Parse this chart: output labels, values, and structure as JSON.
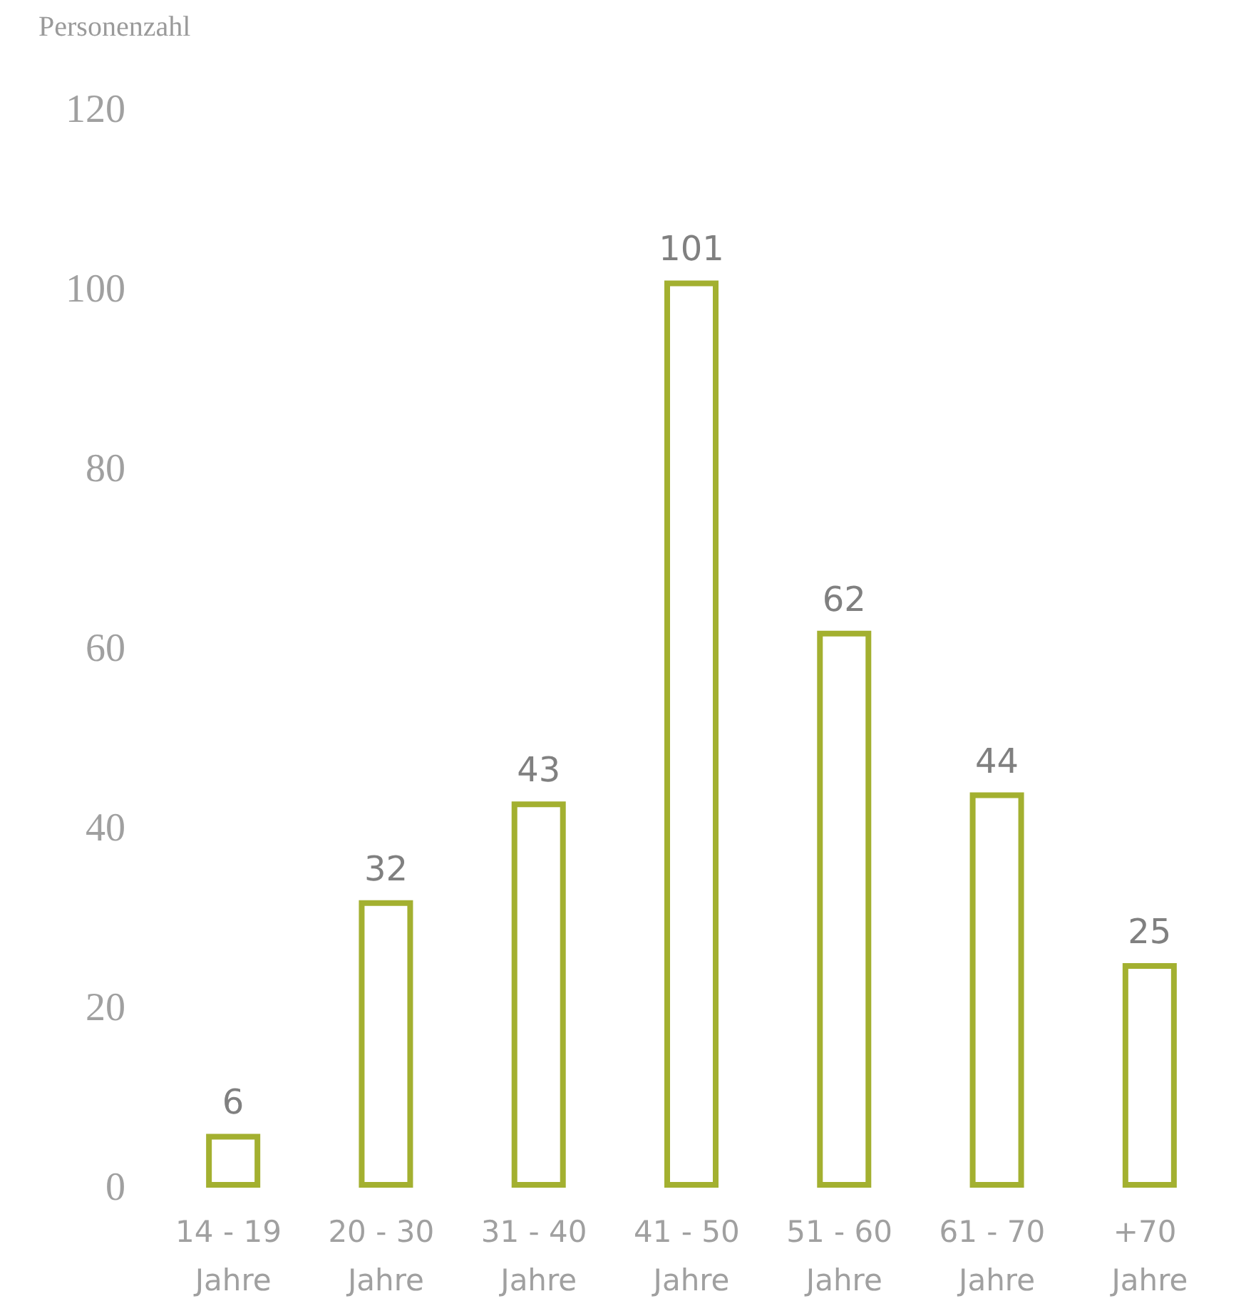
{
  "chart_data": {
    "type": "bar",
    "ylabel": "Personenzahl",
    "categories": [
      "14 - 19 Jahre",
      "20 - 30 Jahre",
      "31 - 40 Jahre",
      "41 - 50 Jahre",
      "51 - 60 Jahre",
      "61 - 70 Jahre",
      "+70 Jahre"
    ],
    "values": [
      6,
      32,
      43,
      101,
      62,
      44,
      25
    ],
    "color": "#a3b030",
    "ylim": [
      0,
      120
    ],
    "yticks": [
      0,
      20,
      40,
      60,
      80,
      100,
      120
    ],
    "grid": false,
    "data_labels": true
  }
}
